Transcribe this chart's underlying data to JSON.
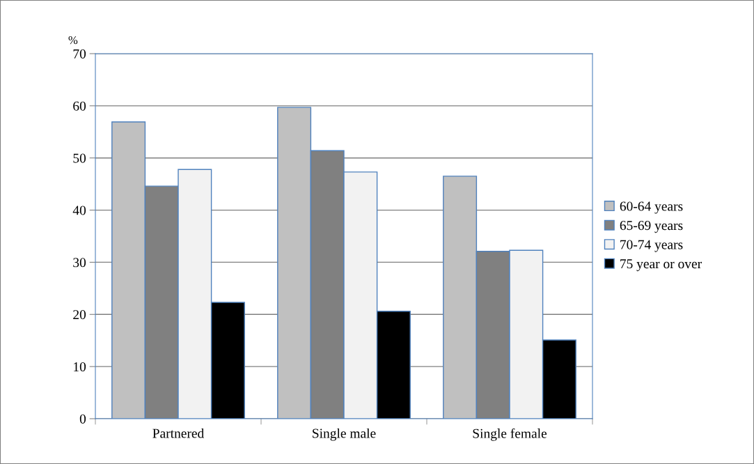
{
  "chart_data": {
    "type": "bar",
    "ylabel": "%",
    "categories": [
      "Partnered",
      "Single male",
      "Single female"
    ],
    "series": [
      {
        "name": "60-64 years",
        "color": "#c0c0c0",
        "values": [
          56.9,
          59.7,
          46.5
        ]
      },
      {
        "name": "65-69 years",
        "color": "#808080",
        "values": [
          44.6,
          51.4,
          32.1
        ]
      },
      {
        "name": "70-74 years",
        "color": "#f2f2f2",
        "values": [
          47.8,
          47.3,
          32.3
        ]
      },
      {
        "name": "75 year or over",
        "color": "#000000",
        "values": [
          22.3,
          20.6,
          15.1
        ]
      }
    ],
    "ylim": [
      0,
      70
    ],
    "yticks": [
      0,
      10,
      20,
      30,
      40,
      50,
      60,
      70
    ],
    "grid": "y",
    "legend": "right"
  }
}
